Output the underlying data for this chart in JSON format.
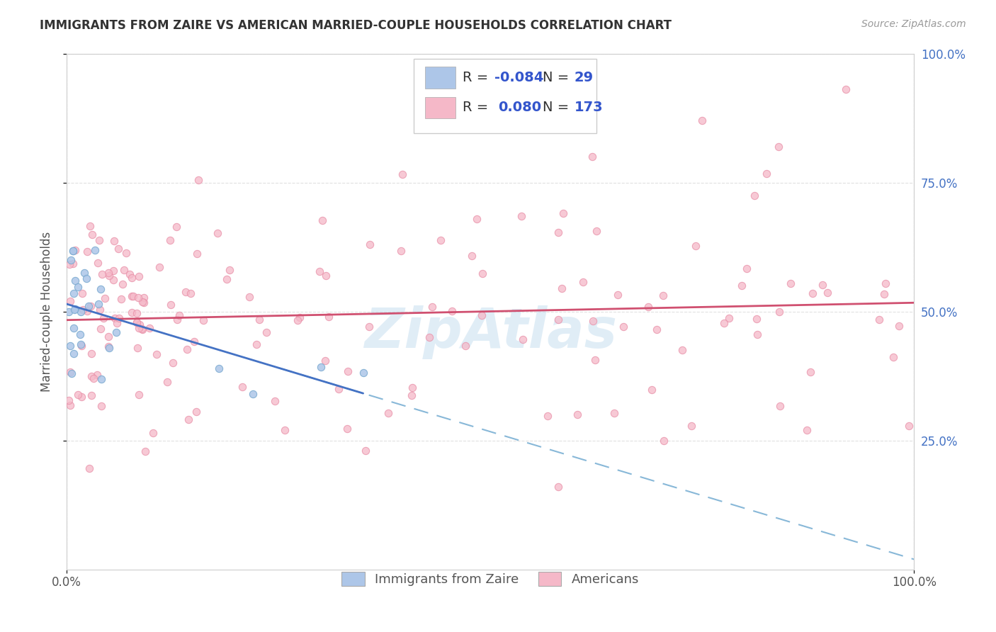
{
  "title": "IMMIGRANTS FROM ZAIRE VS AMERICAN MARRIED-COUPLE HOUSEHOLDS CORRELATION CHART",
  "source": "Source: ZipAtlas.com",
  "ylabel": "Married-couple Households",
  "blue_R": "-0.084",
  "blue_N": "29",
  "pink_R": "0.080",
  "pink_N": "173",
  "blue_fill": "#adc6e8",
  "blue_edge": "#7aaad0",
  "blue_line": "#4472c4",
  "blue_dash": "#88b8d8",
  "pink_fill": "#f5b8c8",
  "pink_edge": "#e890a8",
  "pink_line": "#d05070",
  "watermark_color": "#c8dff0",
  "background": "#ffffff",
  "grid_color": "#e0e0e0",
  "seed": 99
}
